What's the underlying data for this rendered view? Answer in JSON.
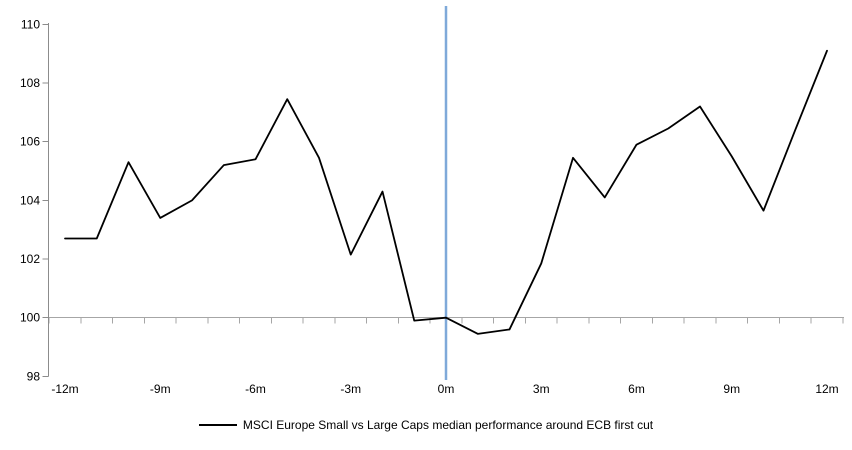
{
  "chart_data": {
    "type": "line",
    "title": "",
    "background": "#FFFFFF",
    "grid": false,
    "x_axis": {
      "tick_labels": [
        "-12m",
        "-9m",
        "-6m",
        "-3m",
        "0m",
        "3m",
        "6m",
        "9m",
        "12m"
      ],
      "tick_positions": [
        -12,
        -9,
        -6,
        -3,
        0,
        3,
        6,
        9,
        12
      ],
      "range": [
        -12.5,
        12.5
      ]
    },
    "y_axis": {
      "tick_labels": [
        "98",
        "100",
        "102",
        "104",
        "106",
        "108",
        "110"
      ],
      "ticks": [
        98,
        100,
        102,
        104,
        106,
        108,
        110
      ],
      "range": [
        98,
        110
      ]
    },
    "x": [
      -12,
      -11,
      -10,
      -9,
      -8,
      -7,
      -6,
      -5,
      -4,
      -3,
      -2,
      -1,
      0,
      1,
      2,
      3,
      4,
      5,
      6,
      7,
      8,
      9,
      10,
      11,
      12
    ],
    "series": [
      {
        "name": "MSCI Europe Small vs Large Caps median performance around ECB first cut",
        "color": "#000000",
        "values": [
          102.7,
          102.7,
          105.3,
          103.4,
          104.0,
          105.2,
          105.4,
          107.45,
          105.45,
          102.15,
          104.3,
          99.9,
          100.0,
          99.45,
          99.6,
          101.85,
          105.45,
          104.1,
          105.9,
          106.45,
          107.2,
          105.5,
          103.65,
          106.4,
          109.1
        ]
      }
    ],
    "reference_lines": [
      {
        "orientation": "vertical",
        "x": 0,
        "color": "#7FA9D9"
      },
      {
        "orientation": "horizontal",
        "y": 100,
        "color": "#A6A6A6"
      }
    ],
    "axis_color": "#8C8C8C",
    "text_color": "#000000",
    "legend": {
      "position": "bottom",
      "entries": [
        {
          "label": "MSCI Europe Small vs Large Caps median performance around ECB first cut",
          "color": "#000000"
        }
      ]
    }
  }
}
